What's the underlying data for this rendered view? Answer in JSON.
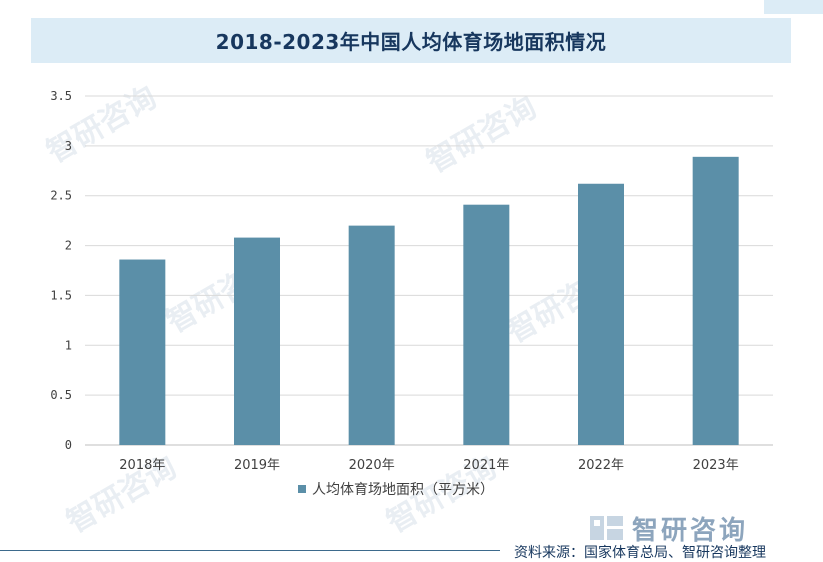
{
  "title": "2018-2023年中国人均体育场地面积情况",
  "chart_data": {
    "type": "bar",
    "categories": [
      "2018年",
      "2019年",
      "2020年",
      "2021年",
      "2022年",
      "2023年"
    ],
    "series": [
      {
        "name": "人均体育场地面积（平方米）",
        "values": [
          1.86,
          2.08,
          2.2,
          2.41,
          2.62,
          2.89
        ]
      }
    ],
    "ylim": [
      0,
      3.5
    ],
    "yticks": [
      "0",
      "0.5",
      "1",
      "1.5",
      "2",
      "2.5",
      "3",
      "3.5"
    ],
    "grid": true,
    "legend_position": "bottom",
    "bar_color": "#5b8fa8"
  },
  "watermark_text": "智研咨询",
  "source_text": "资料来源：国家体育总局、智研咨询整理",
  "brand_text": "智研咨询"
}
